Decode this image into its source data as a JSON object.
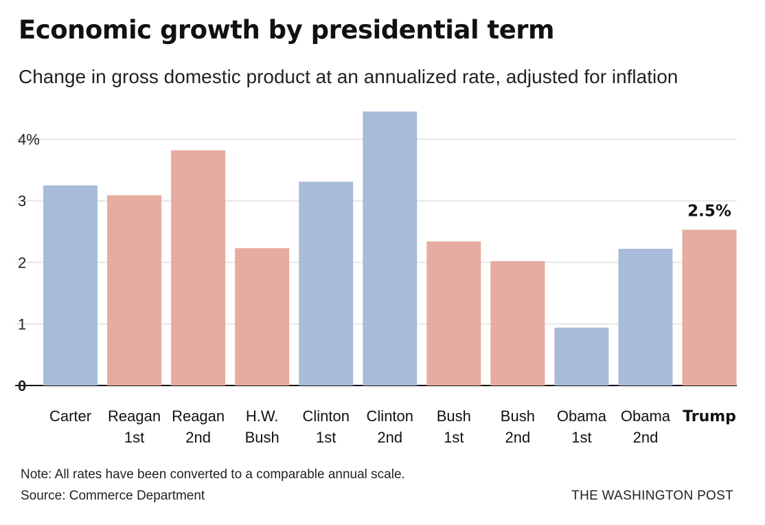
{
  "header": {
    "title": "Economic growth by presidential term",
    "subtitle": "Change in gross domestic product at an annualized rate, adjusted for inflation"
  },
  "footer": {
    "note": "Note: All rates have been converted to a comparable annual scale.",
    "source": "Source: Commerce Department",
    "credit": "THE WASHINGTON POST"
  },
  "colors": {
    "democrat": "#a8bcd9",
    "republican": "#e6aca0",
    "gridline": "#e6e6e6",
    "baseline": "#111111",
    "text": "#222222"
  },
  "chart_data": {
    "type": "bar",
    "title": "Economic growth by presidential term",
    "subtitle": "Change in gross domestic product at an annualized rate, adjusted for inflation",
    "ylim": [
      0,
      4.5
    ],
    "y_ticks": [
      0,
      1,
      2,
      3,
      4
    ],
    "y_tick_labels": [
      "0",
      "1",
      "2",
      "3",
      "4%"
    ],
    "grid": true,
    "categories": [
      {
        "line1": "Carter",
        "line2": "",
        "value": 3.25,
        "party": "democrat",
        "highlight": false
      },
      {
        "line1": "Reagan",
        "line2": "1st",
        "value": 3.09,
        "party": "republican",
        "highlight": false
      },
      {
        "line1": "Reagan",
        "line2": "2nd",
        "value": 3.82,
        "party": "republican",
        "highlight": false
      },
      {
        "line1": "H.W.",
        "line2": "Bush",
        "value": 2.23,
        "party": "republican",
        "highlight": false
      },
      {
        "line1": "Clinton",
        "line2": "1st",
        "value": 3.31,
        "party": "democrat",
        "highlight": false
      },
      {
        "line1": "Clinton",
        "line2": "2nd",
        "value": 4.45,
        "party": "democrat",
        "highlight": false
      },
      {
        "line1": "Bush",
        "line2": "1st",
        "value": 2.34,
        "party": "republican",
        "highlight": false
      },
      {
        "line1": "Bush",
        "line2": "2nd",
        "value": 2.02,
        "party": "republican",
        "highlight": false
      },
      {
        "line1": "Obama",
        "line2": "1st",
        "value": 0.94,
        "party": "democrat",
        "highlight": false
      },
      {
        "line1": "Obama",
        "line2": "2nd",
        "value": 2.22,
        "party": "democrat",
        "highlight": false
      },
      {
        "line1": "Trump",
        "line2": "",
        "value": 2.53,
        "party": "republican",
        "highlight": true
      }
    ],
    "annotation": {
      "text": "2.5%",
      "category_index": 10
    }
  }
}
